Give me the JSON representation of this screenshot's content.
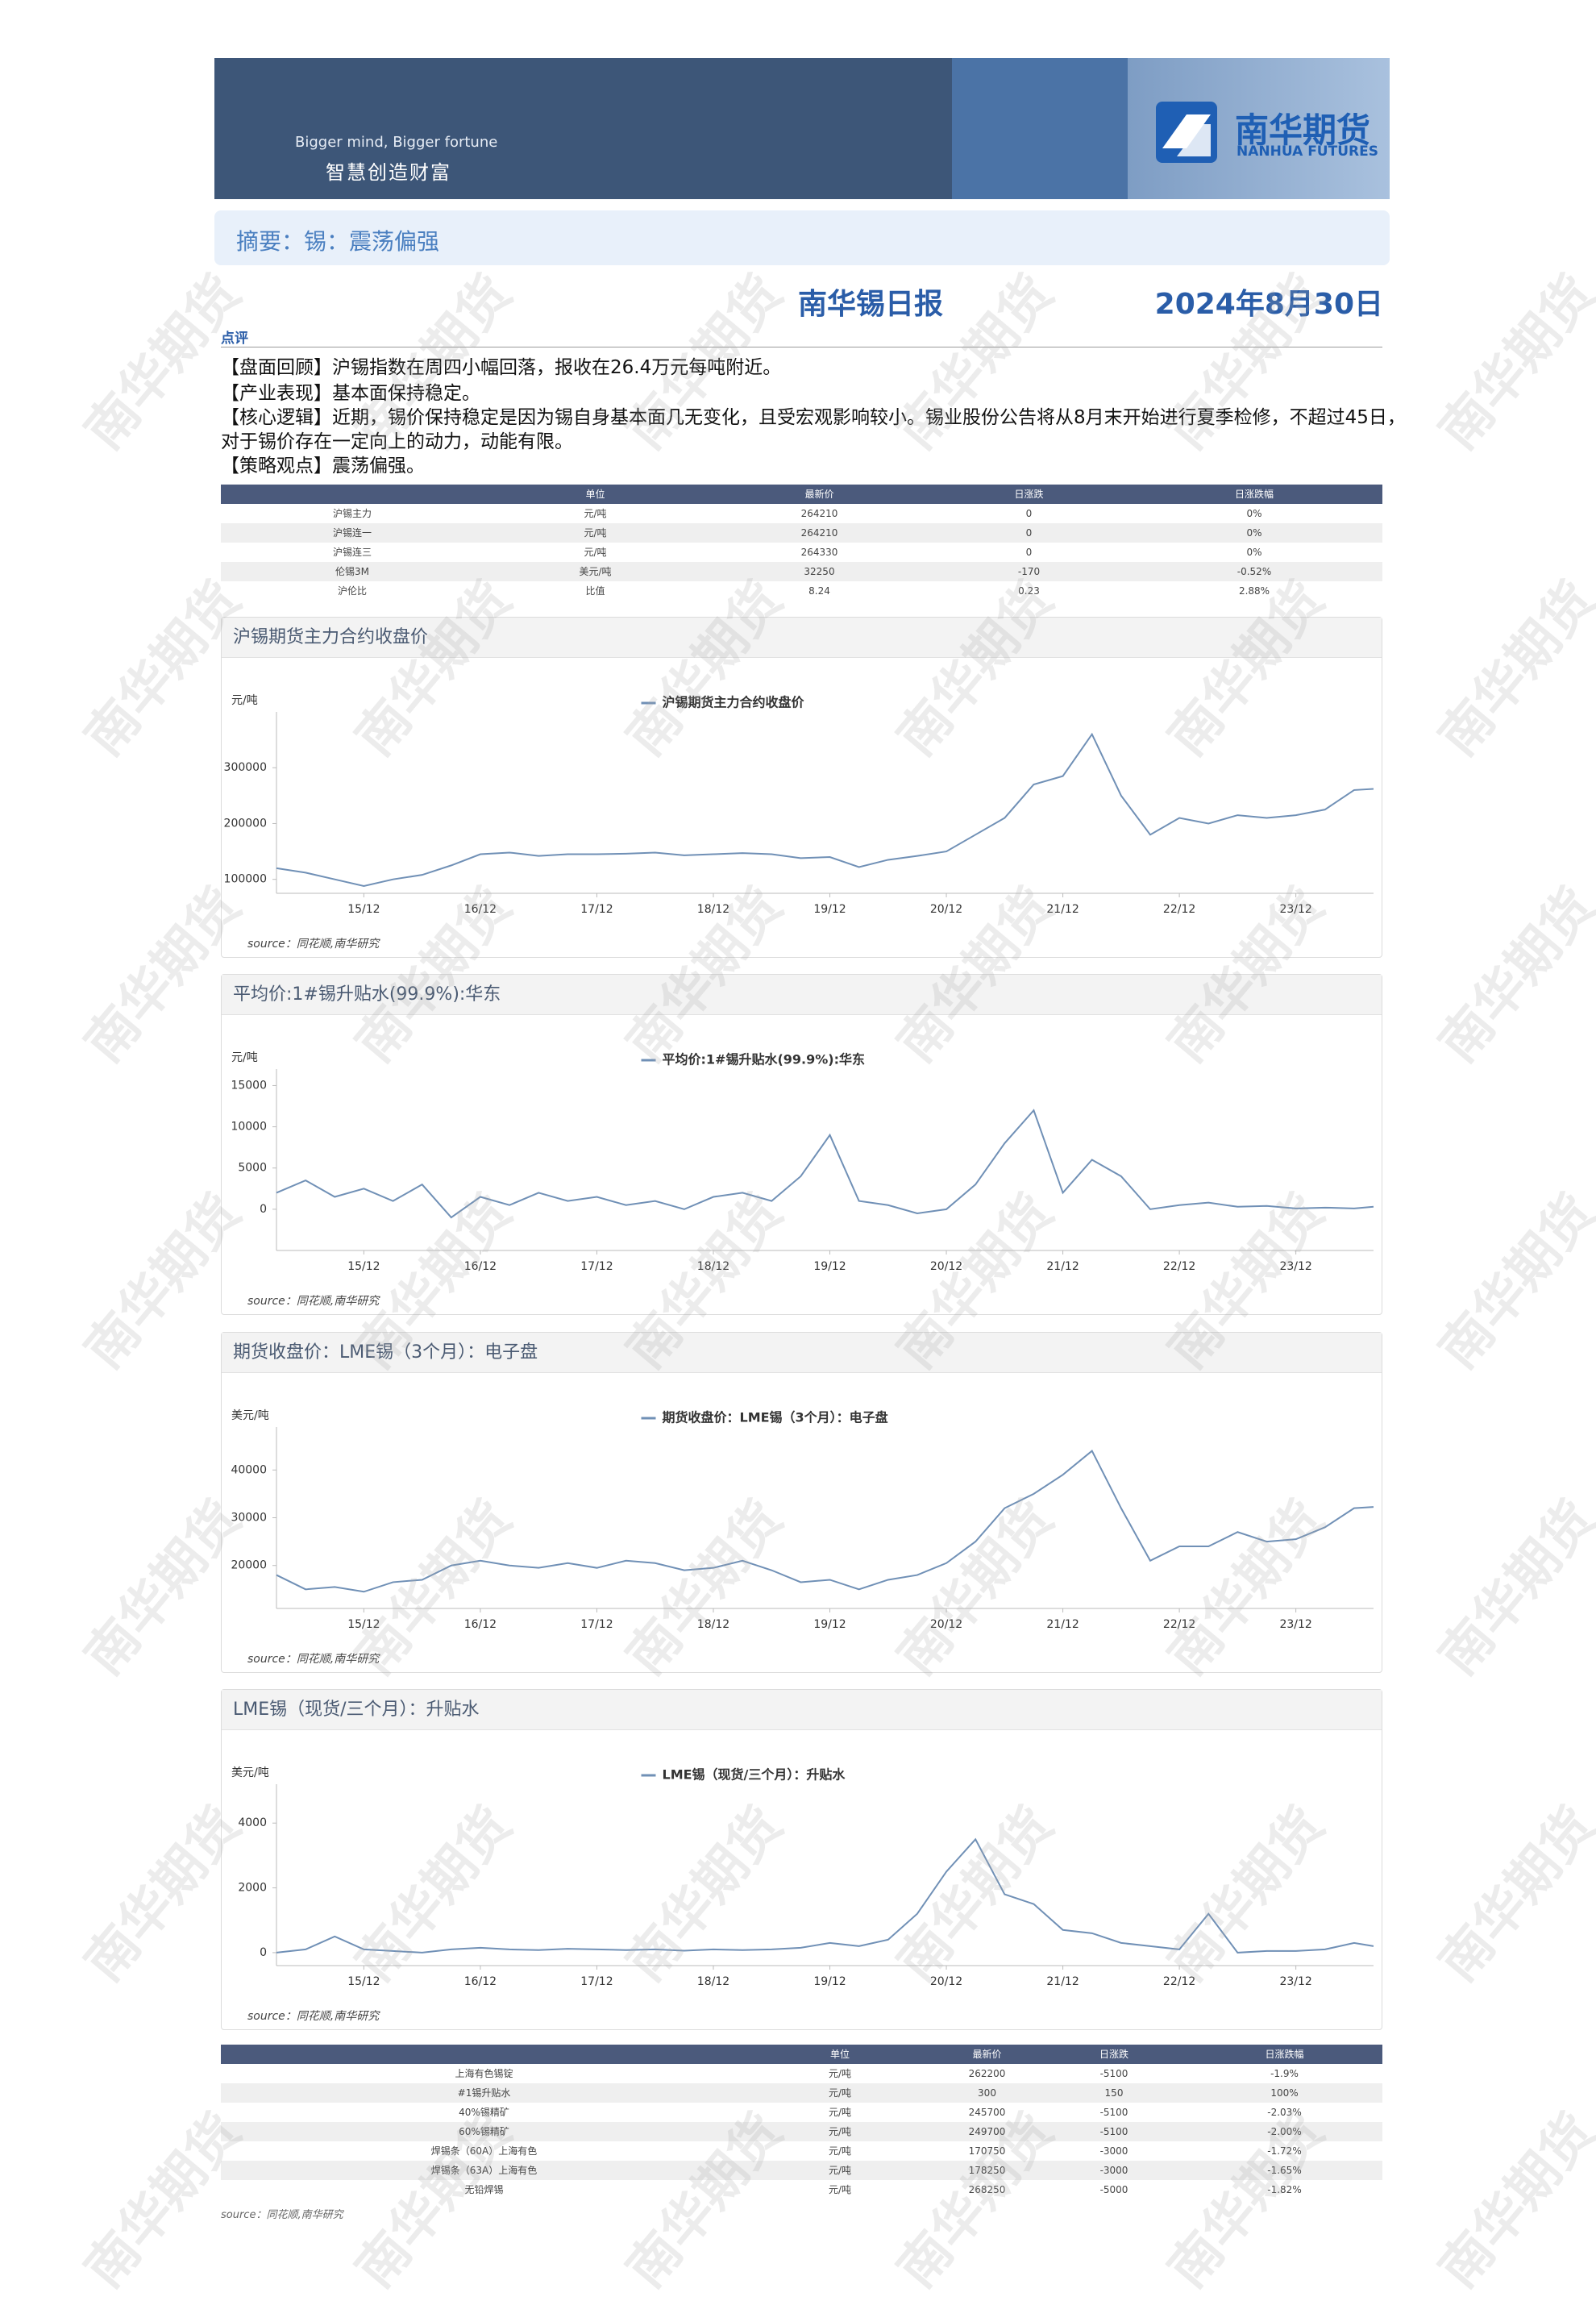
{
  "watermark": "南华期货",
  "header": {
    "slogan_en": "Bigger mind, Bigger fortune",
    "slogan_cn": "智慧创造财富",
    "logo_cn": "南华期货",
    "logo_en": "NANHUA FUTURES"
  },
  "summary": "摘要：锡：震荡偏强",
  "report_title": "南华锡日报",
  "report_date": "2024年8月30日",
  "comment_label": "点评",
  "comments": [
    "【盘面回顾】沪锡指数在周四小幅回落，报收在26.4万元每吨附近。",
    "【产业表现】基本面保持稳定。",
    "【核心逻辑】近期，锡价保持稳定是因为锡自身基本面几无变化，且受宏观影响较小。锡业股份公告将从8月末开始进行夏季检修，不超过45日，",
    "对于锡价存在一定向上的动力，动能有限。",
    "【策略观点】震荡偏强。"
  ],
  "table1": {
    "headers": [
      "单位",
      "最新价",
      "日涨跌",
      "日涨跌幅"
    ],
    "rows": [
      [
        "沪锡主力",
        "元/吨",
        "264210",
        "0",
        "0%"
      ],
      [
        "沪锡连一",
        "元/吨",
        "264210",
        "0",
        "0%"
      ],
      [
        "沪锡连三",
        "元/吨",
        "264330",
        "0",
        "0%"
      ],
      [
        "伦锡3M",
        "美元/吨",
        "32250",
        "-170",
        "-0.52%"
      ],
      [
        "沪伦比",
        "比值",
        "8.24",
        "0.23",
        "2.88%"
      ]
    ]
  },
  "chart_data": [
    {
      "type": "line",
      "title": "沪锡期货主力合约收盘价",
      "y_label": "元/吨",
      "source": "source：同花顺,南华研究",
      "x": [
        "15/03",
        "15/06",
        "15/09",
        "15/12",
        "16/03",
        "16/06",
        "16/09",
        "16/12",
        "17/03",
        "17/06",
        "17/09",
        "17/12",
        "18/03",
        "18/06",
        "18/09",
        "18/12",
        "19/03",
        "19/06",
        "19/09",
        "19/12",
        "20/03",
        "20/06",
        "20/09",
        "20/12",
        "21/03",
        "21/06",
        "21/09",
        "21/12",
        "22/03",
        "22/06",
        "22/09",
        "22/12",
        "23/03",
        "23/06",
        "23/09",
        "23/12",
        "24/03",
        "24/06",
        "24/08"
      ],
      "xticks": [
        "15/12",
        "16/12",
        "17/12",
        "18/12",
        "19/12",
        "20/12",
        "21/12",
        "22/12",
        "23/12"
      ],
      "ylim": [
        75000,
        400000
      ],
      "yticks": [
        100000,
        200000,
        300000
      ],
      "series": [
        {
          "name": "沪锡期货主力合约收盘价",
          "color": "#7090b6",
          "values": [
            120000,
            112000,
            100000,
            88000,
            100000,
            108000,
            125000,
            145000,
            148000,
            142000,
            145000,
            145000,
            146000,
            148000,
            143000,
            145000,
            147000,
            145000,
            138000,
            140000,
            122000,
            135000,
            142000,
            150000,
            180000,
            210000,
            270000,
            285000,
            360000,
            250000,
            180000,
            210000,
            200000,
            215000,
            210000,
            215000,
            225000,
            260000,
            262000
          ]
        }
      ]
    },
    {
      "type": "line",
      "title": "平均价:1#锡升贴水(99.9%):华东",
      "y_label": "元/吨",
      "source": "source：同花顺,南华研究",
      "x": [
        "15/03",
        "15/06",
        "15/09",
        "15/12",
        "16/03",
        "16/06",
        "16/09",
        "16/12",
        "17/03",
        "17/06",
        "17/09",
        "17/12",
        "18/03",
        "18/06",
        "18/09",
        "18/12",
        "19/03",
        "19/06",
        "19/09",
        "19/12",
        "20/03",
        "20/06",
        "20/09",
        "20/12",
        "21/03",
        "21/06",
        "21/09",
        "21/12",
        "22/03",
        "22/06",
        "22/09",
        "22/12",
        "23/03",
        "23/06",
        "23/09",
        "23/12",
        "24/03",
        "24/06",
        "24/08"
      ],
      "xticks": [
        "15/12",
        "16/12",
        "17/12",
        "18/12",
        "19/12",
        "20/12",
        "21/12",
        "22/12",
        "23/12"
      ],
      "ylim": [
        -5000,
        17000
      ],
      "yticks": [
        0,
        5000,
        10000,
        15000
      ],
      "series": [
        {
          "name": "平均价:1#锡升贴水(99.9%):华东",
          "color": "#7090b6",
          "values": [
            2000,
            3500,
            1500,
            2500,
            1000,
            3000,
            -1000,
            1500,
            500,
            2000,
            1000,
            1500,
            500,
            1000,
            0,
            1500,
            2000,
            1000,
            4000,
            9000,
            1000,
            500,
            -500,
            0,
            3000,
            8000,
            12000,
            2000,
            6000,
            4000,
            0,
            500,
            800,
            300,
            400,
            100,
            200,
            100,
            300
          ]
        }
      ]
    },
    {
      "type": "line",
      "title": "期货收盘价：LME锡（3个月）：电子盘",
      "y_label": "美元/吨",
      "source": "source：同花顺,南华研究",
      "x": [
        "15/03",
        "15/06",
        "15/09",
        "15/12",
        "16/03",
        "16/06",
        "16/09",
        "16/12",
        "17/03",
        "17/06",
        "17/09",
        "17/12",
        "18/03",
        "18/06",
        "18/09",
        "18/12",
        "19/03",
        "19/06",
        "19/09",
        "19/12",
        "20/03",
        "20/06",
        "20/09",
        "20/12",
        "21/03",
        "21/06",
        "21/09",
        "21/12",
        "22/03",
        "22/06",
        "22/09",
        "22/12",
        "23/03",
        "23/06",
        "23/09",
        "23/12",
        "24/03",
        "24/06",
        "24/08"
      ],
      "xticks": [
        "15/12",
        "16/12",
        "17/12",
        "18/12",
        "19/12",
        "20/12",
        "21/12",
        "22/12",
        "23/12"
      ],
      "ylim": [
        11000,
        49000
      ],
      "yticks": [
        20000,
        30000,
        40000
      ],
      "series": [
        {
          "name": "期货收盘价：LME锡（3个月）：电子盘",
          "color": "#7090b6",
          "values": [
            18000,
            15000,
            15500,
            14500,
            16500,
            17000,
            20000,
            21000,
            20000,
            19500,
            20500,
            19500,
            21000,
            20500,
            19000,
            19500,
            21000,
            19000,
            16500,
            17000,
            15000,
            17000,
            18000,
            20500,
            25000,
            32000,
            35000,
            39000,
            44000,
            32000,
            21000,
            24000,
            24000,
            27000,
            25000,
            25500,
            28000,
            32000,
            32250
          ]
        }
      ]
    },
    {
      "type": "line",
      "title": "LME锡（现货/三个月）：升贴水",
      "y_label": "美元/吨",
      "source": "source：同花顺,南华研究",
      "x": [
        "15/03",
        "15/06",
        "15/09",
        "15/12",
        "16/03",
        "16/06",
        "16/09",
        "16/12",
        "17/03",
        "17/06",
        "17/09",
        "17/12",
        "18/03",
        "18/06",
        "18/09",
        "18/12",
        "19/03",
        "19/06",
        "19/09",
        "19/12",
        "20/03",
        "20/06",
        "20/09",
        "20/12",
        "21/03",
        "21/06",
        "21/09",
        "21/12",
        "22/03",
        "22/06",
        "22/09",
        "22/12",
        "23/03",
        "23/06",
        "23/09",
        "23/12",
        "24/03",
        "24/06",
        "24/08"
      ],
      "xticks": [
        "15/12",
        "16/12",
        "17/12",
        "18/12",
        "19/12",
        "20/12",
        "21/12",
        "22/12",
        "23/12"
      ],
      "ylim": [
        -400,
        5200
      ],
      "yticks": [
        0,
        2000,
        4000
      ],
      "series": [
        {
          "name": "LME锡（现货/三个月）：升贴水",
          "color": "#7090b6",
          "values": [
            0,
            100,
            500,
            100,
            50,
            0,
            100,
            150,
            100,
            80,
            120,
            100,
            80,
            100,
            60,
            100,
            80,
            100,
            150,
            300,
            200,
            400,
            1200,
            2500,
            3500,
            1800,
            1500,
            700,
            600,
            300,
            200,
            100,
            1200,
            0,
            50,
            50,
            100,
            300,
            200
          ]
        }
      ]
    }
  ],
  "table2": {
    "headers": [
      "单位",
      "最新价",
      "日涨跌",
      "日涨跌幅"
    ],
    "rows": [
      [
        "上海有色锡锭",
        "元/吨",
        "262200",
        "-5100",
        "-1.9%"
      ],
      [
        "#1锡升贴水",
        "元/吨",
        "300",
        "150",
        "100%"
      ],
      [
        "40%锡精矿",
        "元/吨",
        "245700",
        "-5100",
        "-2.03%"
      ],
      [
        "60%锡精矿",
        "元/吨",
        "249700",
        "-5100",
        "-2.00%"
      ],
      [
        "焊锡条（60A）上海有色",
        "元/吨",
        "170750",
        "-3000",
        "-1.72%"
      ],
      [
        "焊锡条（63A）上海有色",
        "元/吨",
        "178250",
        "-3000",
        "-1.65%"
      ],
      [
        "无铅焊锡",
        "元/吨",
        "268250",
        "-5000",
        "-1.82%"
      ]
    ]
  },
  "footer_source": "source：同花顺,南华研究"
}
